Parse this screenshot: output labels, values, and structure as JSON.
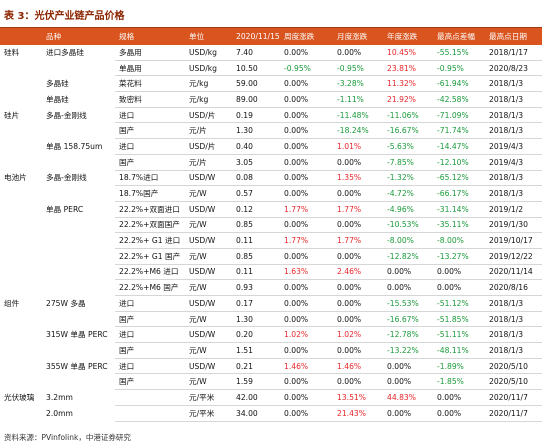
{
  "title": "表 3：光伏产业链产品价格",
  "table": {
    "header": [
      null,
      "品种",
      "规格",
      "单位",
      "2020/11/15",
      "周度涨跌",
      "月度涨跌",
      "年度涨跌",
      "最高点差幅",
      "最高点日期"
    ],
    "rows": [
      [
        "硅料",
        "进口多晶硅",
        "多晶用",
        "USD/kg",
        "7.40",
        "0.00%",
        "0.00%",
        "10.45%",
        "-55.15%",
        "2018/1/17"
      ],
      [
        null,
        null,
        "单晶用",
        "USD/kg",
        "10.50",
        "-0.95%",
        "-0.95%",
        "23.81%",
        "-0.95%",
        "2020/8/23"
      ],
      [
        null,
        "多晶硅",
        "菜花料",
        "元/kg",
        "59.00",
        "0.00%",
        "-3.28%",
        "11.32%",
        "-61.94%",
        "2018/1/3"
      ],
      [
        null,
        "单晶硅",
        "致密料",
        "元/kg",
        "89.00",
        "0.00%",
        "-1.11%",
        "21.92%",
        "-42.58%",
        "2018/1/3"
      ],
      [
        "硅片",
        "多晶-金刚线",
        "进口",
        "USD/片",
        "0.19",
        "0.00%",
        "-11.48%",
        "-11.06%",
        "-71.09%",
        "2018/1/3"
      ],
      [
        null,
        null,
        "国产",
        "元/片",
        "1.30",
        "0.00%",
        "-18.24%",
        "-16.67%",
        "-71.74%",
        "2018/1/3"
      ],
      [
        null,
        "单晶 158.75um",
        "进口",
        "USD/片",
        "0.40",
        "0.00%",
        "1.01%",
        "-5.63%",
        "-14.47%",
        "2019/4/3"
      ],
      [
        null,
        null,
        "国产",
        "元/片",
        "3.05",
        "0.00%",
        "0.00%",
        "-7.85%",
        "-12.10%",
        "2019/4/3"
      ],
      [
        "电池片",
        "多晶-金刚线",
        "18.7%进口",
        "USD/W",
        "0.08",
        "0.00%",
        "1.35%",
        "-1.32%",
        "-65.12%",
        "2018/1/3"
      ],
      [
        null,
        null,
        "18.7%国产",
        "元/W",
        "0.57",
        "0.00%",
        "0.00%",
        "-4.72%",
        "-66.17%",
        "2018/1/3"
      ],
      [
        null,
        "单晶 PERC",
        "22.2%+双面进口",
        "USD/W",
        "0.12",
        "1.77%",
        "1.77%",
        "-4.96%",
        "-31.14%",
        "2019/1/2"
      ],
      [
        null,
        null,
        "22.2%+双面国产",
        "元/W",
        "0.85",
        "0.00%",
        "0.00%",
        "-10.53%",
        "-35.11%",
        "2019/1/30"
      ],
      [
        null,
        null,
        "22.2%+ G1 进口",
        "USD/W",
        "0.11",
        "1.77%",
        "1.77%",
        "-8.00%",
        "-8.00%",
        "2019/10/17"
      ],
      [
        null,
        null,
        "22.2%+ G1 国产",
        "元/W",
        "0.85",
        "0.00%",
        "0.00%",
        "-12.82%",
        "-13.27%",
        "2019/12/22"
      ],
      [
        null,
        null,
        "22.2%+M6 进口",
        "USD/W",
        "0.11",
        "1.63%",
        "2.46%",
        "0.00%",
        "0.00%",
        "2020/11/14"
      ],
      [
        null,
        null,
        "22.2%+M6 国产",
        "元/W",
        "0.93",
        "0.00%",
        "0.00%",
        "0.00%",
        "0.00%",
        "2020/8/16"
      ],
      [
        "组件",
        "275W 多晶",
        "进口",
        "USD/W",
        "0.17",
        "0.00%",
        "0.00%",
        "-15.53%",
        "-51.12%",
        "2018/1/3"
      ],
      [
        null,
        null,
        "国产",
        "元/W",
        "1.30",
        "0.00%",
        "0.00%",
        "-16.67%",
        "-51.85%",
        "2018/1/3"
      ],
      [
        null,
        "315W 单晶 PERC",
        "进口",
        "USD/W",
        "0.20",
        "1.02%",
        "1.02%",
        "-12.78%",
        "-51.11%",
        "2018/1/3"
      ],
      [
        null,
        null,
        "国产",
        "元/W",
        "1.51",
        "0.00%",
        "0.00%",
        "-13.22%",
        "-48.11%",
        "2018/1/3"
      ],
      [
        null,
        "355W 单晶 PERC",
        "进口",
        "USD/W",
        "0.21",
        "1.46%",
        "1.46%",
        "0.00%",
        "-1.89%",
        "2020/5/10"
      ],
      [
        null,
        null,
        "国产",
        "元/W",
        "1.59",
        "0.00%",
        "0.00%",
        "0.00%",
        "-1.85%",
        "2020/5/10"
      ],
      [
        "光伏玻璃",
        "3.2mm",
        null,
        "元/平米",
        "42.00",
        "0.00%",
        "13.51%",
        "44.83%",
        "0.00%",
        "2020/11/7"
      ],
      [
        null,
        "2.0mm",
        null,
        "元/平米",
        "34.00",
        "0.00%",
        "21.43%",
        "0.00%",
        "0.00%",
        "2020/11/7"
      ]
    ]
  },
  "source": "资料来源：PVinfolink，中港证券研究"
}
